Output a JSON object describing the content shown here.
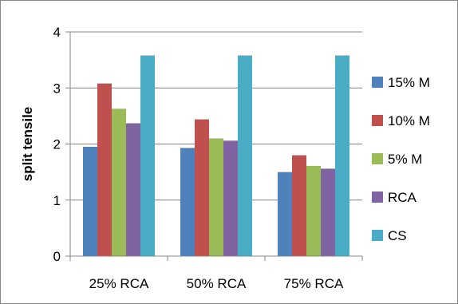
{
  "chart_data": {
    "type": "bar",
    "categories": [
      "25% RCA",
      "50% RCA",
      "75% RCA"
    ],
    "series": [
      {
        "name": "15% M",
        "values": [
          1.95,
          1.93,
          1.5
        ],
        "color": "#4F81BD"
      },
      {
        "name": "10% M",
        "values": [
          3.08,
          2.44,
          1.8
        ],
        "color": "#C0504D"
      },
      {
        "name": "5% M",
        "values": [
          2.63,
          2.1,
          1.61
        ],
        "color": "#9BBB59"
      },
      {
        "name": "RCA",
        "values": [
          2.37,
          2.06,
          1.56
        ],
        "color": "#8064A2"
      },
      {
        "name": "CS",
        "values": [
          3.58,
          3.58,
          3.58
        ],
        "color": "#4BACC6"
      }
    ],
    "ylabel": "split tensile",
    "xlabel": "",
    "ylim": [
      0,
      4
    ],
    "yticks": [
      "0",
      "1",
      "2",
      "3",
      "4"
    ],
    "grid": true,
    "legend_position": "right"
  }
}
